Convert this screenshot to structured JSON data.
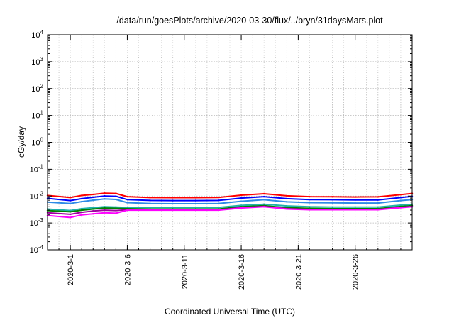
{
  "chart_data": {
    "type": "line",
    "title": "/data/run/goesPlots/archive/2020-03-30/flux/../bryn/31daysMars.plot",
    "xlabel": "Coordinated Universal Time (UTC)",
    "ylabel": "cGy/day",
    "yscale": "log",
    "ylim": [
      0.0001,
      10000
    ],
    "xlim": [
      "2020-02-28",
      "2020-03-31"
    ],
    "grid": true,
    "legend": "none",
    "y_ticks": [
      {
        "value": 0.0001,
        "base": "10",
        "exp": "-4"
      },
      {
        "value": 0.001,
        "base": "10",
        "exp": "-3"
      },
      {
        "value": 0.01,
        "base": "10",
        "exp": "-2"
      },
      {
        "value": 0.1,
        "base": "10",
        "exp": "-1"
      },
      {
        "value": 1,
        "base": "10",
        "exp": "0"
      },
      {
        "value": 10,
        "base": "10",
        "exp": "1"
      },
      {
        "value": 100,
        "base": "10",
        "exp": "2"
      },
      {
        "value": 1000,
        "base": "10",
        "exp": "3"
      },
      {
        "value": 10000,
        "base": "10",
        "exp": "4"
      }
    ],
    "x_ticks": [
      {
        "date": "2020-03-01",
        "label": "2020-3-1"
      },
      {
        "date": "2020-03-06",
        "label": "2020-3-6"
      },
      {
        "date": "2020-03-11",
        "label": "2020-3-11"
      },
      {
        "date": "2020-03-16",
        "label": "2020-3-16"
      },
      {
        "date": "2020-03-21",
        "label": "2020-3-21"
      },
      {
        "date": "2020-03-26",
        "label": "2020-3-26"
      }
    ],
    "x": [
      "2020-02-28",
      "2020-03-01",
      "2020-03-02",
      "2020-03-03",
      "2020-03-04",
      "2020-03-05",
      "2020-03-06",
      "2020-03-08",
      "2020-03-10",
      "2020-03-12",
      "2020-03-14",
      "2020-03-16",
      "2020-03-18",
      "2020-03-20",
      "2020-03-22",
      "2020-03-24",
      "2020-03-26",
      "2020-03-28",
      "2020-03-30",
      "2020-03-31"
    ],
    "series": [
      {
        "color": "#ff0000",
        "values": [
          0.0105,
          0.0088,
          0.0105,
          0.0115,
          0.0128,
          0.0125,
          0.0095,
          0.0088,
          0.0087,
          0.0087,
          0.0089,
          0.0108,
          0.0122,
          0.0102,
          0.0095,
          0.0094,
          0.0092,
          0.0093,
          0.0113,
          0.0125
        ]
      },
      {
        "color": "#0000ff",
        "values": [
          0.0082,
          0.0068,
          0.008,
          0.009,
          0.01,
          0.0098,
          0.0074,
          0.0069,
          0.0068,
          0.0068,
          0.0069,
          0.0084,
          0.0095,
          0.008,
          0.0074,
          0.0073,
          0.0072,
          0.0072,
          0.0088,
          0.0097
        ]
      },
      {
        "color": "#2e8be6",
        "values": [
          0.006,
          0.0053,
          0.0062,
          0.007,
          0.0078,
          0.0075,
          0.0057,
          0.0053,
          0.0052,
          0.0052,
          0.0053,
          0.0064,
          0.0073,
          0.0061,
          0.0057,
          0.0056,
          0.0055,
          0.0055,
          0.0068,
          0.0074
        ]
      },
      {
        "color": "#20b2aa",
        "values": [
          0.0033,
          0.0029,
          0.0034,
          0.0037,
          0.004,
          0.0039,
          0.0038,
          0.0038,
          0.0038,
          0.0038,
          0.0038,
          0.0045,
          0.005,
          0.0043,
          0.004,
          0.0039,
          0.0039,
          0.0039,
          0.0046,
          0.005
        ]
      },
      {
        "color": "#008000",
        "values": [
          0.0029,
          0.0026,
          0.003,
          0.0033,
          0.0036,
          0.0035,
          0.0034,
          0.0033,
          0.0033,
          0.0033,
          0.0033,
          0.004,
          0.0044,
          0.0037,
          0.0035,
          0.0034,
          0.0034,
          0.0034,
          0.0041,
          0.0044
        ]
      },
      {
        "color": "#a0009f",
        "values": [
          0.0024,
          0.0021,
          0.0025,
          0.0028,
          0.003,
          0.0029,
          0.0031,
          0.0031,
          0.0031,
          0.0031,
          0.0031,
          0.0037,
          0.0041,
          0.0034,
          0.0032,
          0.0032,
          0.0032,
          0.0032,
          0.0038,
          0.0041
        ]
      },
      {
        "color": "#ff00ff",
        "values": [
          0.0019,
          0.0016,
          0.002,
          0.0022,
          0.0024,
          0.0023,
          0.003,
          0.003,
          0.003,
          0.003,
          0.003,
          0.0036,
          0.004,
          0.0033,
          0.0031,
          0.0031,
          0.0031,
          0.0031,
          0.0037,
          0.004
        ]
      }
    ]
  }
}
